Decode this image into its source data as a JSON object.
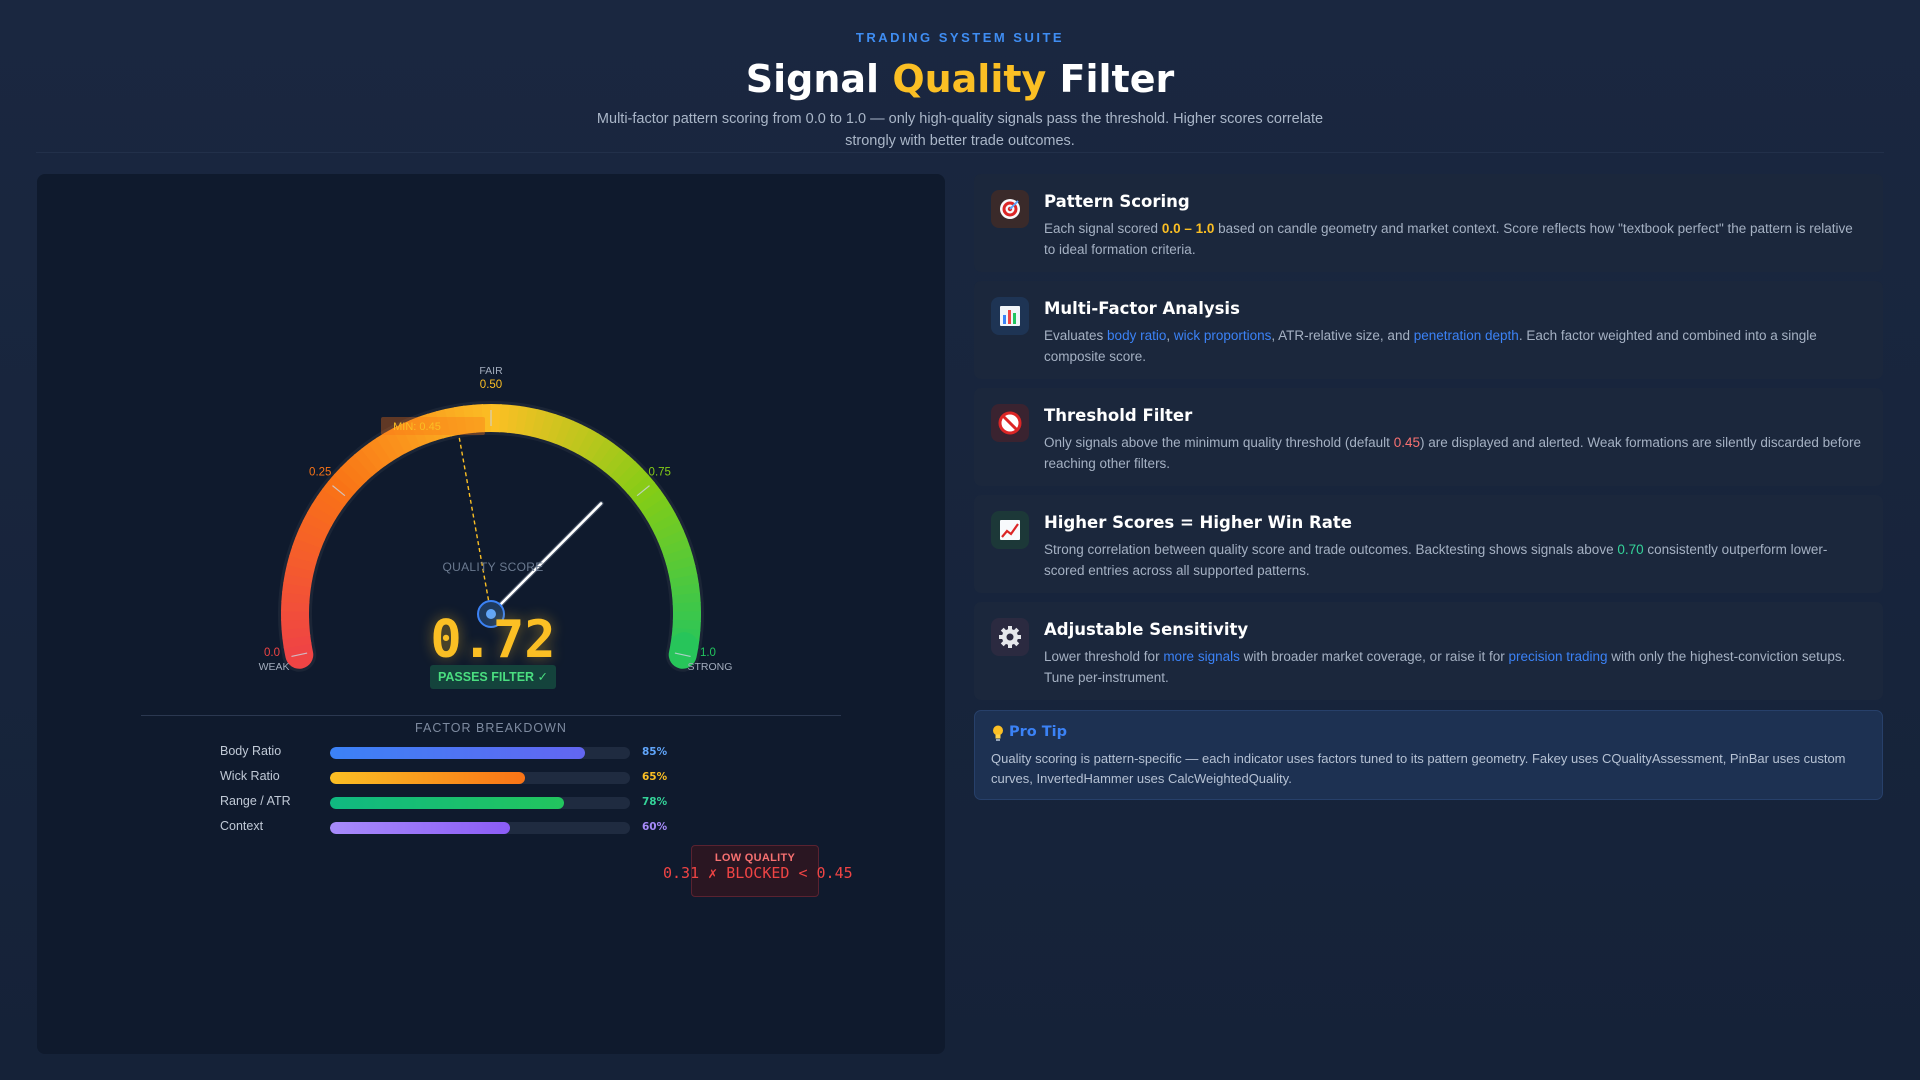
{
  "header": {
    "eyebrow": "TRADING SYSTEM SUITE",
    "title_prefix": "Signal ",
    "title_accent": "Quality",
    "title_suffix": " Filter",
    "subtitle": "Multi-factor pattern scoring from 0.0 to 1.0 — only high-quality signals pass the threshold. Higher scores correlate strongly with better trade outcomes."
  },
  "gauge": {
    "score": 0.72,
    "score_display": "0.72",
    "score_label": "QUALITY SCORE",
    "pass_label": "PASSES FILTER ✓",
    "min_threshold": 0.45,
    "min_label": "MIN: 0.45",
    "range": [
      0,
      1
    ],
    "ticks": [
      {
        "value": 0.0,
        "label": "0.0",
        "color": "#ef4444"
      },
      {
        "value": 0.25,
        "label": "0.25",
        "color": "#f97316"
      },
      {
        "value": 0.5,
        "label": "0.50",
        "color": "#fbbf24"
      },
      {
        "value": 0.75,
        "label": "0.75",
        "color": "#84cc16"
      },
      {
        "value": 1.0,
        "label": "1.0",
        "color": "#22c55e"
      }
    ],
    "zone_labels": {
      "weak": "WEAK",
      "fair": "FAIR",
      "strong": "STRONG"
    },
    "colors": {
      "red": "#ef4444",
      "orange": "#f97316",
      "yellow": "#fbbf24",
      "lime": "#84cc16",
      "green": "#22c55e",
      "needle": "#ffffff",
      "threshold": "#fbbf24"
    }
  },
  "breakdown": {
    "title": "FACTOR BREAKDOWN",
    "factors": [
      {
        "label": "Body Ratio",
        "value": 0.85,
        "pct": "85%",
        "color_from": "#3b82f6",
        "color_to": "#6366f1",
        "pct_color": "#60a5fa"
      },
      {
        "label": "Wick Ratio",
        "value": 0.65,
        "pct": "65%",
        "color_from": "#fbbf24",
        "color_to": "#f97316",
        "pct_color": "#fbbf24"
      },
      {
        "label": "Range / ATR",
        "value": 0.78,
        "pct": "78%",
        "color_from": "#10b981",
        "color_to": "#22c55e",
        "pct_color": "#34d399"
      },
      {
        "label": "Context",
        "value": 0.6,
        "pct": "60%",
        "color_from": "#a78bfa",
        "color_to": "#8b5cf6",
        "pct_color": "#a78bfa"
      }
    ]
  },
  "low_quality": {
    "title": "LOW QUALITY",
    "line": "0.31 ✗ BLOCKED < 0.45"
  },
  "cards": [
    {
      "title": "Pattern Scoring",
      "icon": "target-icon",
      "icon_bg": "#3a2a2a",
      "body": [
        {
          "t": "Each signal scored "
        },
        {
          "t": "0.0 – 1.0",
          "c": "hl-yellow"
        },
        {
          "t": " based on candle geometry and market context. Score reflects how \"textbook perfect\" the pattern is relative to ideal formation criteria."
        }
      ]
    },
    {
      "title": "Multi-Factor Analysis",
      "icon": "bar-chart-icon",
      "icon_bg": "#1e3454",
      "body": [
        {
          "t": "Evaluates "
        },
        {
          "t": "body ratio",
          "c": "hl-blue"
        },
        {
          "t": ", "
        },
        {
          "t": "wick proportions",
          "c": "hl-blue"
        },
        {
          "t": ", ATR-relative size, and "
        },
        {
          "t": "penetration depth",
          "c": "hl-blue"
        },
        {
          "t": ". Each factor weighted and combined into a single composite score."
        }
      ]
    },
    {
      "title": "Threshold Filter",
      "icon": "prohibited-icon",
      "icon_bg": "#3a2330",
      "body": [
        {
          "t": "Only signals above the minimum quality threshold (default "
        },
        {
          "t": "0.45",
          "c": "hl-red"
        },
        {
          "t": ") are displayed and alerted. Weak formations are silently discarded before reaching other filters."
        }
      ]
    },
    {
      "title": "Higher Scores = Higher Win Rate",
      "icon": "trending-up-icon",
      "icon_bg": "#1c3838",
      "body": [
        {
          "t": "Strong correlation between quality score and trade outcomes. Backtesting shows signals above "
        },
        {
          "t": "0.70",
          "c": "hl-green"
        },
        {
          "t": " consistently outperform lower-scored entries across all supported patterns."
        }
      ]
    },
    {
      "title": "Adjustable Sensitivity",
      "icon": "gear-icon",
      "icon_bg": "#2b2a40",
      "body": [
        {
          "t": "Lower threshold for "
        },
        {
          "t": "more signals",
          "c": "hl-blue"
        },
        {
          "t": " with broader market coverage, or raise it for "
        },
        {
          "t": "precision trading",
          "c": "hl-blue"
        },
        {
          "t": " with only the highest-conviction setups. Tune per-instrument."
        }
      ]
    }
  ],
  "tip": {
    "title": "Pro Tip",
    "icon": "lightbulb-icon",
    "body": "Quality scoring is pattern-specific — each indicator uses factors tuned to its pattern geometry. Fakey uses CQualityAssessment, PinBar uses custom curves, InvertedHammer uses CalcWeightedQuality."
  }
}
